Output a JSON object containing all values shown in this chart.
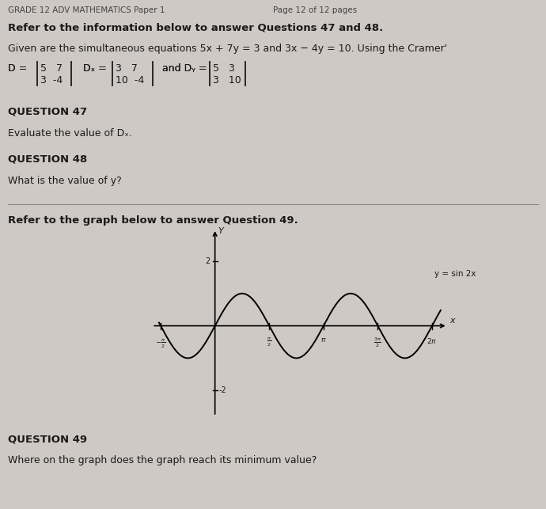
{
  "bg_color": "#cec9c5",
  "header_left": "GRADE 12 ADV MATHEMATICS Paper 1",
  "header_right": "Page 12 of 12 pages",
  "intro_bold": "Refer to the information below to answer Questions 47 and 48.",
  "body_text_1": "Given are the simultaneous equations 5x + 7y = 3 and 3x − 4y = 10. Using the Cramer'",
  "q47_label": "QUESTION 47",
  "q47_text": "Evaluate the value of Dₓ.",
  "q48_label": "QUESTION 48",
  "q48_text": "What is the value of y?",
  "refer49_bold": "Refer to the graph below to answer Question 49.",
  "q49_label": "QUESTION 49",
  "q49_text": "Where on the graph does the graph reach its minimum value?",
  "curve_label": "y = sin 2x",
  "text_color": "#1a1a1a",
  "label_fontsize": 9,
  "bold_fontsize": 9.5,
  "header_fontsize": 7.5
}
